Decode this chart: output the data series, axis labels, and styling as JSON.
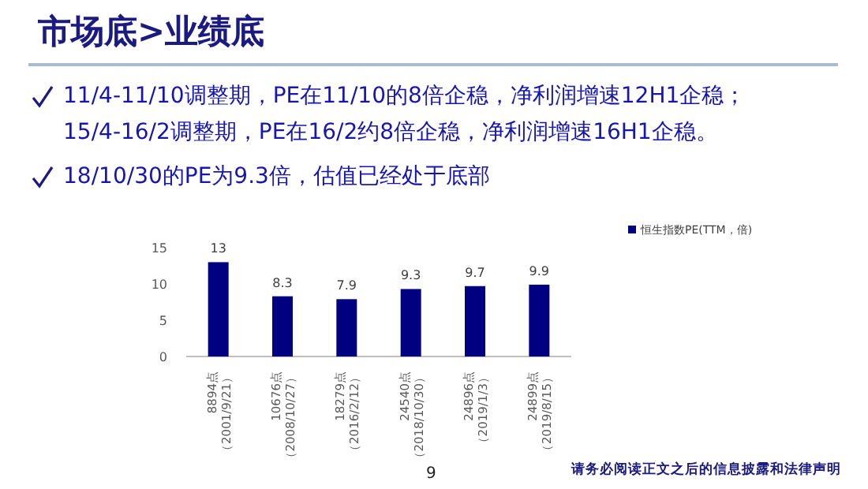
{
  "chart_data": {
    "type": "bar",
    "title": "市场底>业绩底",
    "annotations": [
      "11/4-11/10调整期，PE在11/10的8倍企稳，净利润增速12H1企稳；",
      "15/4-16/2调整期，PE在16/2约8倍企稳，净利润增速16H1企稳。",
      "18/10/30的PE为9.3倍，估值已经处于底部",
      "9",
      "请务必阅读正文之后的信息披露和法律声明"
    ],
    "categories": [
      "8894点（2001/9/21）",
      "10676点（2008/10/27）",
      "18279点（2016/2/12）",
      "24540点（2018/10/30）",
      "24896点（2019/1/3）",
      "24899点（2019/8/15）"
    ],
    "series": [
      {
        "name": "恒生指数PE(TTM，倍)",
        "color": "#000080",
        "values": [
          13,
          8.3,
          7.9,
          9.3,
          9.7,
          9.9
        ]
      }
    ],
    "ylim": [
      0,
      15
    ],
    "yticks": [
      0,
      5,
      10,
      15
    ],
    "data_labels": true,
    "legend": "top right",
    "grid": false
  }
}
